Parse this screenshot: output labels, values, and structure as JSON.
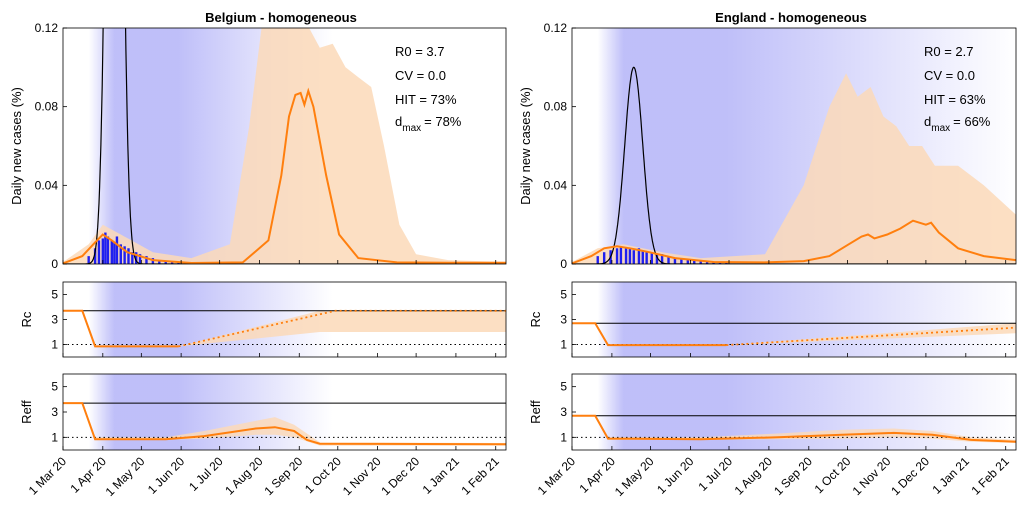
{
  "chart_data": [
    {
      "type": "area",
      "title": "Belgium - homogeneous",
      "annotations": {
        "r0": "R0 = 3.7",
        "cv": "CV = 0.0",
        "hit": "HIT = 73%",
        "dmax_prefix": "d",
        "dmax_sub": "max",
        "dmax_value": "= 78%"
      },
      "colors": {
        "model": "#ff7f0e",
        "band": "#fcd9b8",
        "data": "#1f1ff0",
        "homog": "#000000",
        "npi": "#b8b8f8"
      },
      "x_ticks": [
        "1 Mar 20",
        "1 Apr 20",
        "1 May 20",
        "1 Jun 20",
        "1 Jul 20",
        "1 Aug 20",
        "1 Sep 20",
        "1 Oct 20",
        "1 Nov 20",
        "1 Dec 20",
        "1 Jan 21",
        "1 Feb 21"
      ],
      "npi": {
        "ramp_start": 20,
        "full_start": 40,
        "full_end": 90,
        "fade_end": 210
      },
      "panels": [
        {
          "ylabel": "Daily new cases (%)",
          "ylim": [
            0,
            0.12
          ],
          "y_ticks": [
            0,
            0.04,
            0.08,
            0.12
          ],
          "y_tick_labels": [
            "0",
            "0.04",
            "0.08",
            "0.12"
          ],
          "homogeneous_curve": {
            "peak_day": 40,
            "peak": 0.55,
            "width": 5
          },
          "model": [
            [
              0,
              0.0003
            ],
            [
              15,
              0.004
            ],
            [
              25,
              0.011
            ],
            [
              31,
              0.015
            ],
            [
              38,
              0.012
            ],
            [
              50,
              0.006
            ],
            [
              70,
              0.002
            ],
            [
              100,
              0.0005
            ],
            [
              140,
              0.0008
            ],
            [
              160,
              0.012
            ],
            [
              170,
              0.045
            ],
            [
              176,
              0.075
            ],
            [
              181,
              0.086
            ],
            [
              185,
              0.087
            ],
            [
              188,
              0.081
            ],
            [
              191,
              0.088
            ],
            [
              195,
              0.08
            ],
            [
              205,
              0.045
            ],
            [
              215,
              0.015
            ],
            [
              230,
              0.003
            ],
            [
              260,
              0.0008
            ],
            [
              300,
              0.0006
            ],
            [
              345,
              0.0006
            ]
          ],
          "band_upper": [
            [
              0,
              0.001
            ],
            [
              20,
              0.01
            ],
            [
              31,
              0.02
            ],
            [
              45,
              0.015
            ],
            [
              70,
              0.006
            ],
            [
              100,
              0.003
            ],
            [
              130,
              0.01
            ],
            [
              145,
              0.07
            ],
            [
              155,
              0.122
            ],
            [
              180,
              0.122
            ],
            [
              190,
              0.122
            ],
            [
              200,
              0.11
            ],
            [
              210,
              0.112
            ],
            [
              220,
              0.1
            ],
            [
              230,
              0.095
            ],
            [
              240,
              0.09
            ],
            [
              250,
              0.06
            ],
            [
              262,
              0.02
            ],
            [
              275,
              0.005
            ],
            [
              300,
              0.002
            ],
            [
              345,
              0.001
            ]
          ],
          "band_lower": [
            [
              0,
              0
            ],
            [
              345,
              0
            ]
          ],
          "reported_cases": [
            [
              20,
              0.004
            ],
            [
              25,
              0.008
            ],
            [
              28,
              0.012
            ],
            [
              31,
              0.013
            ],
            [
              33,
              0.016
            ],
            [
              35,
              0.014
            ],
            [
              38,
              0.012
            ],
            [
              40,
              0.011
            ],
            [
              42,
              0.014
            ],
            [
              45,
              0.01
            ],
            [
              48,
              0.009
            ],
            [
              51,
              0.008
            ],
            [
              54,
              0.006
            ],
            [
              57,
              0.006
            ],
            [
              60,
              0.005
            ],
            [
              65,
              0.004
            ],
            [
              70,
              0.003
            ],
            [
              75,
              0.002
            ],
            [
              80,
              0.0015
            ],
            [
              85,
              0.001
            ],
            [
              90,
              0.0008
            ]
          ]
        },
        {
          "ylabel": "Rc",
          "ylim": [
            0,
            6
          ],
          "y_ticks": [
            1,
            3,
            5
          ],
          "y_tick_labels": [
            "1",
            "3",
            "5"
          ],
          "reference": 3.7,
          "threshold": 1,
          "model_solid": [
            [
              0,
              3.7
            ],
            [
              15,
              3.7
            ],
            [
              25,
              0.85
            ],
            [
              90,
              0.85
            ]
          ],
          "model_dotted": [
            [
              90,
              0.85
            ],
            [
              212,
              3.7
            ],
            [
              345,
              3.7
            ]
          ],
          "band_upper": [
            [
              90,
              0.85
            ],
            [
              200,
              3.7
            ],
            [
              345,
              3.7
            ]
          ],
          "band_lower": [
            [
              90,
              0.85
            ],
            [
              200,
              2.0
            ],
            [
              345,
              2.0
            ]
          ]
        },
        {
          "ylabel": "Reff",
          "ylim": [
            0,
            6
          ],
          "y_ticks": [
            1,
            3,
            5
          ],
          "y_tick_labels": [
            "1",
            "3",
            "5"
          ],
          "reference": 3.7,
          "threshold": 1,
          "model_solid": [
            [
              0,
              3.7
            ],
            [
              15,
              3.7
            ],
            [
              25,
              0.85
            ],
            [
              80,
              0.85
            ],
            [
              110,
              1.1
            ],
            [
              150,
              1.7
            ],
            [
              165,
              1.8
            ],
            [
              180,
              1.5
            ],
            [
              190,
              0.8
            ],
            [
              200,
              0.5
            ],
            [
              345,
              0.45
            ]
          ],
          "band_upper": [
            [
              0,
              3.7
            ],
            [
              15,
              3.7
            ],
            [
              25,
              1.0
            ],
            [
              80,
              1.0
            ],
            [
              110,
              1.5
            ],
            [
              150,
              2.3
            ],
            [
              165,
              2.6
            ],
            [
              180,
              2.0
            ],
            [
              200,
              0.6
            ],
            [
              345,
              0.55
            ]
          ],
          "band_lower": [
            [
              0,
              3.7
            ],
            [
              15,
              3.7
            ],
            [
              25,
              0.8
            ],
            [
              80,
              0.8
            ],
            [
              110,
              0.9
            ],
            [
              150,
              1.2
            ],
            [
              165,
              1.2
            ],
            [
              180,
              1.0
            ],
            [
              200,
              0.35
            ],
            [
              345,
              0.35
            ]
          ]
        }
      ]
    },
    {
      "type": "area",
      "title": "England - homogeneous",
      "annotations": {
        "r0": "R0 = 2.7",
        "cv": "CV = 0.0",
        "hit": "HIT = 63%",
        "dmax_prefix": "d",
        "dmax_sub": "max",
        "dmax_value": "= 66%"
      },
      "colors": {
        "model": "#ff7f0e",
        "band": "#fcd9b8",
        "data": "#1f1ff0",
        "homog": "#000000",
        "npi": "#b8b8f8"
      },
      "x_ticks": [
        "1 Mar 20",
        "1 Apr 20",
        "1 May 20",
        "1 Jun 20",
        "1 Jul 20",
        "1 Aug 20",
        "1 Sep 20",
        "1 Oct 20",
        "1 Nov 20",
        "1 Dec 20",
        "1 Jan 21",
        "1 Feb 21"
      ],
      "npi": {
        "ramp_start": 20,
        "full_start": 40,
        "full_end": 120,
        "fade_end": 345
      },
      "panels": [
        {
          "ylabel": "Daily new cases (%)",
          "ylim": [
            0,
            0.12
          ],
          "y_ticks": [
            0,
            0.04,
            0.08,
            0.12
          ],
          "y_tick_labels": [
            "0",
            "0.04",
            "0.08",
            "0.12"
          ],
          "homogeneous_curve": {
            "peak_day": 48,
            "peak": 0.1,
            "width": 7
          },
          "model": [
            [
              0,
              0.0003
            ],
            [
              15,
              0.004
            ],
            [
              25,
              0.008
            ],
            [
              35,
              0.009
            ],
            [
              45,
              0.008
            ],
            [
              60,
              0.006
            ],
            [
              80,
              0.003
            ],
            [
              110,
              0.001
            ],
            [
              150,
              0.0008
            ],
            [
              180,
              0.0015
            ],
            [
              200,
              0.004
            ],
            [
              215,
              0.01
            ],
            [
              225,
              0.014
            ],
            [
              230,
              0.015
            ],
            [
              235,
              0.013
            ],
            [
              245,
              0.015
            ],
            [
              255,
              0.018
            ],
            [
              265,
              0.022
            ],
            [
              275,
              0.02
            ],
            [
              279,
              0.021
            ],
            [
              285,
              0.016
            ],
            [
              300,
              0.008
            ],
            [
              320,
              0.004
            ],
            [
              345,
              0.002
            ]
          ],
          "band_upper": [
            [
              0,
              0.001
            ],
            [
              20,
              0.008
            ],
            [
              40,
              0.01
            ],
            [
              70,
              0.006
            ],
            [
              100,
              0.003
            ],
            [
              150,
              0.005
            ],
            [
              180,
              0.04
            ],
            [
              200,
              0.08
            ],
            [
              213,
              0.097
            ],
            [
              222,
              0.085
            ],
            [
              232,
              0.09
            ],
            [
              242,
              0.075
            ],
            [
              252,
              0.07
            ],
            [
              262,
              0.06
            ],
            [
              272,
              0.06
            ],
            [
              282,
              0.05
            ],
            [
              300,
              0.05
            ],
            [
              320,
              0.04
            ],
            [
              345,
              0.025
            ]
          ],
          "band_lower": [
            [
              0,
              0
            ],
            [
              345,
              0
            ]
          ],
          "reported_cases": [
            [
              20,
              0.004
            ],
            [
              25,
              0.006
            ],
            [
              30,
              0.007
            ],
            [
              35,
              0.008
            ],
            [
              38,
              0.009
            ],
            [
              42,
              0.008
            ],
            [
              45,
              0.008
            ],
            [
              48,
              0.007
            ],
            [
              52,
              0.008
            ],
            [
              55,
              0.007
            ],
            [
              58,
              0.006
            ],
            [
              62,
              0.006
            ],
            [
              66,
              0.005
            ],
            [
              70,
              0.005
            ],
            [
              75,
              0.004
            ],
            [
              80,
              0.003
            ],
            [
              85,
              0.003
            ],
            [
              90,
              0.002
            ],
            [
              95,
              0.002
            ],
            [
              100,
              0.0015
            ],
            [
              105,
              0.001
            ],
            [
              110,
              0.001
            ],
            [
              115,
              0.0008
            ],
            [
              120,
              0.0008
            ]
          ]
        },
        {
          "ylabel": "Rc",
          "ylim": [
            0,
            6
          ],
          "y_ticks": [
            1,
            3,
            5
          ],
          "y_tick_labels": [
            "1",
            "3",
            "5"
          ],
          "reference": 2.7,
          "threshold": 1,
          "model_solid": [
            [
              0,
              2.7
            ],
            [
              18,
              2.7
            ],
            [
              28,
              0.95
            ],
            [
              120,
              0.95
            ]
          ],
          "model_dotted": [
            [
              120,
              0.95
            ],
            [
              345,
              2.35
            ]
          ],
          "band_upper": [
            [
              120,
              0.95
            ],
            [
              345,
              2.7
            ]
          ],
          "band_lower": [
            [
              120,
              0.95
            ],
            [
              345,
              1.9
            ]
          ]
        },
        {
          "ylabel": "Reff",
          "ylim": [
            0,
            6
          ],
          "y_ticks": [
            1,
            3,
            5
          ],
          "y_tick_labels": [
            "1",
            "3",
            "5"
          ],
          "reference": 2.7,
          "threshold": 1,
          "model_solid": [
            [
              0,
              2.7
            ],
            [
              18,
              2.7
            ],
            [
              28,
              0.9
            ],
            [
              100,
              0.85
            ],
            [
              160,
              1.0
            ],
            [
              210,
              1.2
            ],
            [
              250,
              1.35
            ],
            [
              280,
              1.2
            ],
            [
              310,
              0.8
            ],
            [
              345,
              0.65
            ]
          ],
          "band_upper": [
            [
              0,
              2.7
            ],
            [
              18,
              2.7
            ],
            [
              28,
              1.0
            ],
            [
              100,
              1.0
            ],
            [
              160,
              1.3
            ],
            [
              210,
              1.6
            ],
            [
              250,
              1.7
            ],
            [
              280,
              1.5
            ],
            [
              310,
              1.0
            ],
            [
              345,
              0.8
            ]
          ],
          "band_lower": [
            [
              0,
              2.7
            ],
            [
              18,
              2.7
            ],
            [
              28,
              0.8
            ],
            [
              100,
              0.8
            ],
            [
              160,
              0.85
            ],
            [
              210,
              0.9
            ],
            [
              250,
              1.0
            ],
            [
              280,
              0.9
            ],
            [
              310,
              0.65
            ],
            [
              345,
              0.55
            ]
          ]
        }
      ]
    }
  ]
}
